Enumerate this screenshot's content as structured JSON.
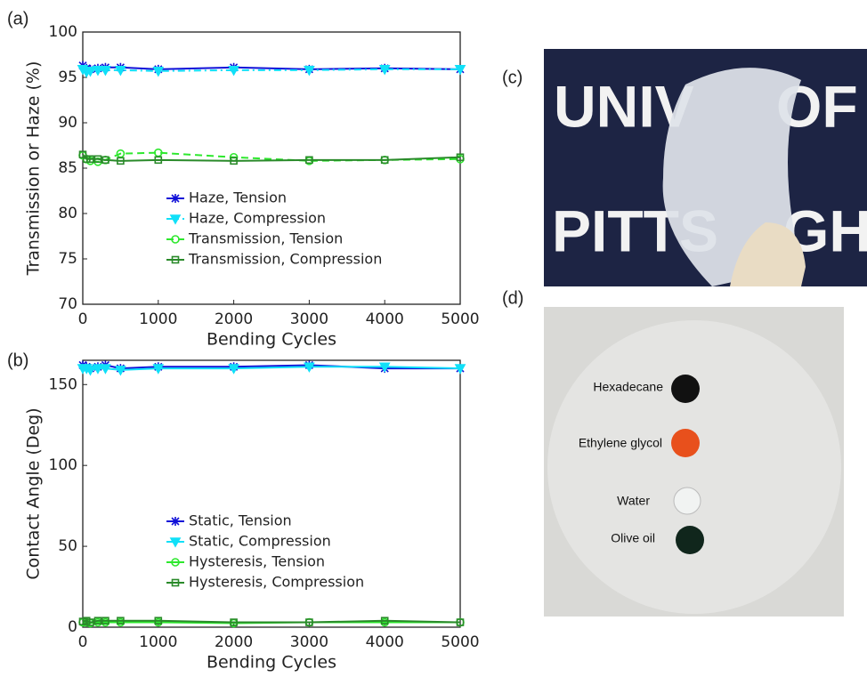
{
  "chart_data": [
    {
      "type": "line",
      "panel": "(a)",
      "xlabel": "Bending Cycles",
      "ylabel": "Transmission or Haze (%)",
      "x": [
        0,
        50,
        100,
        200,
        300,
        500,
        1000,
        2000,
        3000,
        4000,
        5000
      ],
      "xlim": [
        0,
        5000
      ],
      "xticks": [
        0,
        1000,
        2000,
        3000,
        4000,
        5000
      ],
      "ylim": [
        70,
        100
      ],
      "yticks": [
        70,
        75,
        80,
        85,
        90,
        95,
        100
      ],
      "legend": "center",
      "series": [
        {
          "name": "Haze, Tension",
          "color": "#1010d8",
          "marker": "x",
          "dash": "solid",
          "values": [
            96.3,
            96.0,
            95.9,
            96.0,
            96.1,
            96.1,
            95.9,
            96.1,
            95.9,
            96.0,
            95.9
          ]
        },
        {
          "name": "Haze, Compression",
          "color": "#10e0f8",
          "marker": "v",
          "dash": "dashdot",
          "values": [
            95.9,
            95.6,
            95.7,
            95.8,
            95.8,
            95.8,
            95.7,
            95.8,
            95.8,
            95.9,
            95.9
          ]
        },
        {
          "name": "Transmission, Tension",
          "color": "#2ee82e",
          "marker": "o",
          "dash": "dashed",
          "values": [
            86.4,
            86.0,
            85.8,
            85.7,
            85.9,
            86.6,
            86.7,
            86.2,
            85.8,
            85.9,
            86.0
          ]
        },
        {
          "name": "Transmission, Compression",
          "color": "#2a8a2a",
          "marker": "s",
          "dash": "solid",
          "values": [
            86.5,
            86.0,
            86.0,
            86.0,
            85.9,
            85.8,
            85.9,
            85.8,
            85.9,
            85.9,
            86.2
          ]
        }
      ]
    },
    {
      "type": "line",
      "panel": "(b)",
      "xlabel": "Bending Cycles",
      "ylabel": "Contact Angle (Deg)",
      "x": [
        0,
        50,
        100,
        200,
        300,
        500,
        1000,
        2000,
        3000,
        4000,
        5000
      ],
      "xlim": [
        0,
        5000
      ],
      "xticks": [
        0,
        1000,
        2000,
        3000,
        4000,
        5000
      ],
      "ylim": [
        0,
        165
      ],
      "yticks": [
        0,
        50,
        100,
        150
      ],
      "legend": "center",
      "series": [
        {
          "name": "Static, Tension",
          "color": "#1010d8",
          "marker": "x",
          "dash": "solid",
          "values": [
            162,
            161,
            160,
            161,
            162,
            160,
            161,
            161,
            162,
            160,
            160
          ]
        },
        {
          "name": "Static, Compression",
          "color": "#10e0f8",
          "marker": "v",
          "dash": "solid",
          "values": [
            160,
            160,
            159,
            160,
            160,
            159,
            160,
            160,
            161,
            161,
            160
          ]
        },
        {
          "name": "Hysteresis, Tension",
          "color": "#2ee82e",
          "marker": "o",
          "dash": "solid",
          "values": [
            3,
            3,
            2.5,
            3,
            3,
            3,
            3,
            2.5,
            3,
            3,
            3
          ]
        },
        {
          "name": "Hysteresis, Compression",
          "color": "#2a8a2a",
          "marker": "s",
          "dash": "solid",
          "values": [
            3.5,
            4,
            3,
            4,
            4,
            4,
            4,
            3,
            3,
            4,
            3
          ]
        }
      ]
    }
  ],
  "photos": [
    {
      "label": "(c)",
      "texts": [
        "UNIV",
        "OF",
        "PITTS",
        "GH"
      ]
    },
    {
      "label": "(d)",
      "labels": [
        "Hexadecane",
        "Ethylene  glycol",
        "Water",
        "Olive  oil"
      ]
    }
  ]
}
